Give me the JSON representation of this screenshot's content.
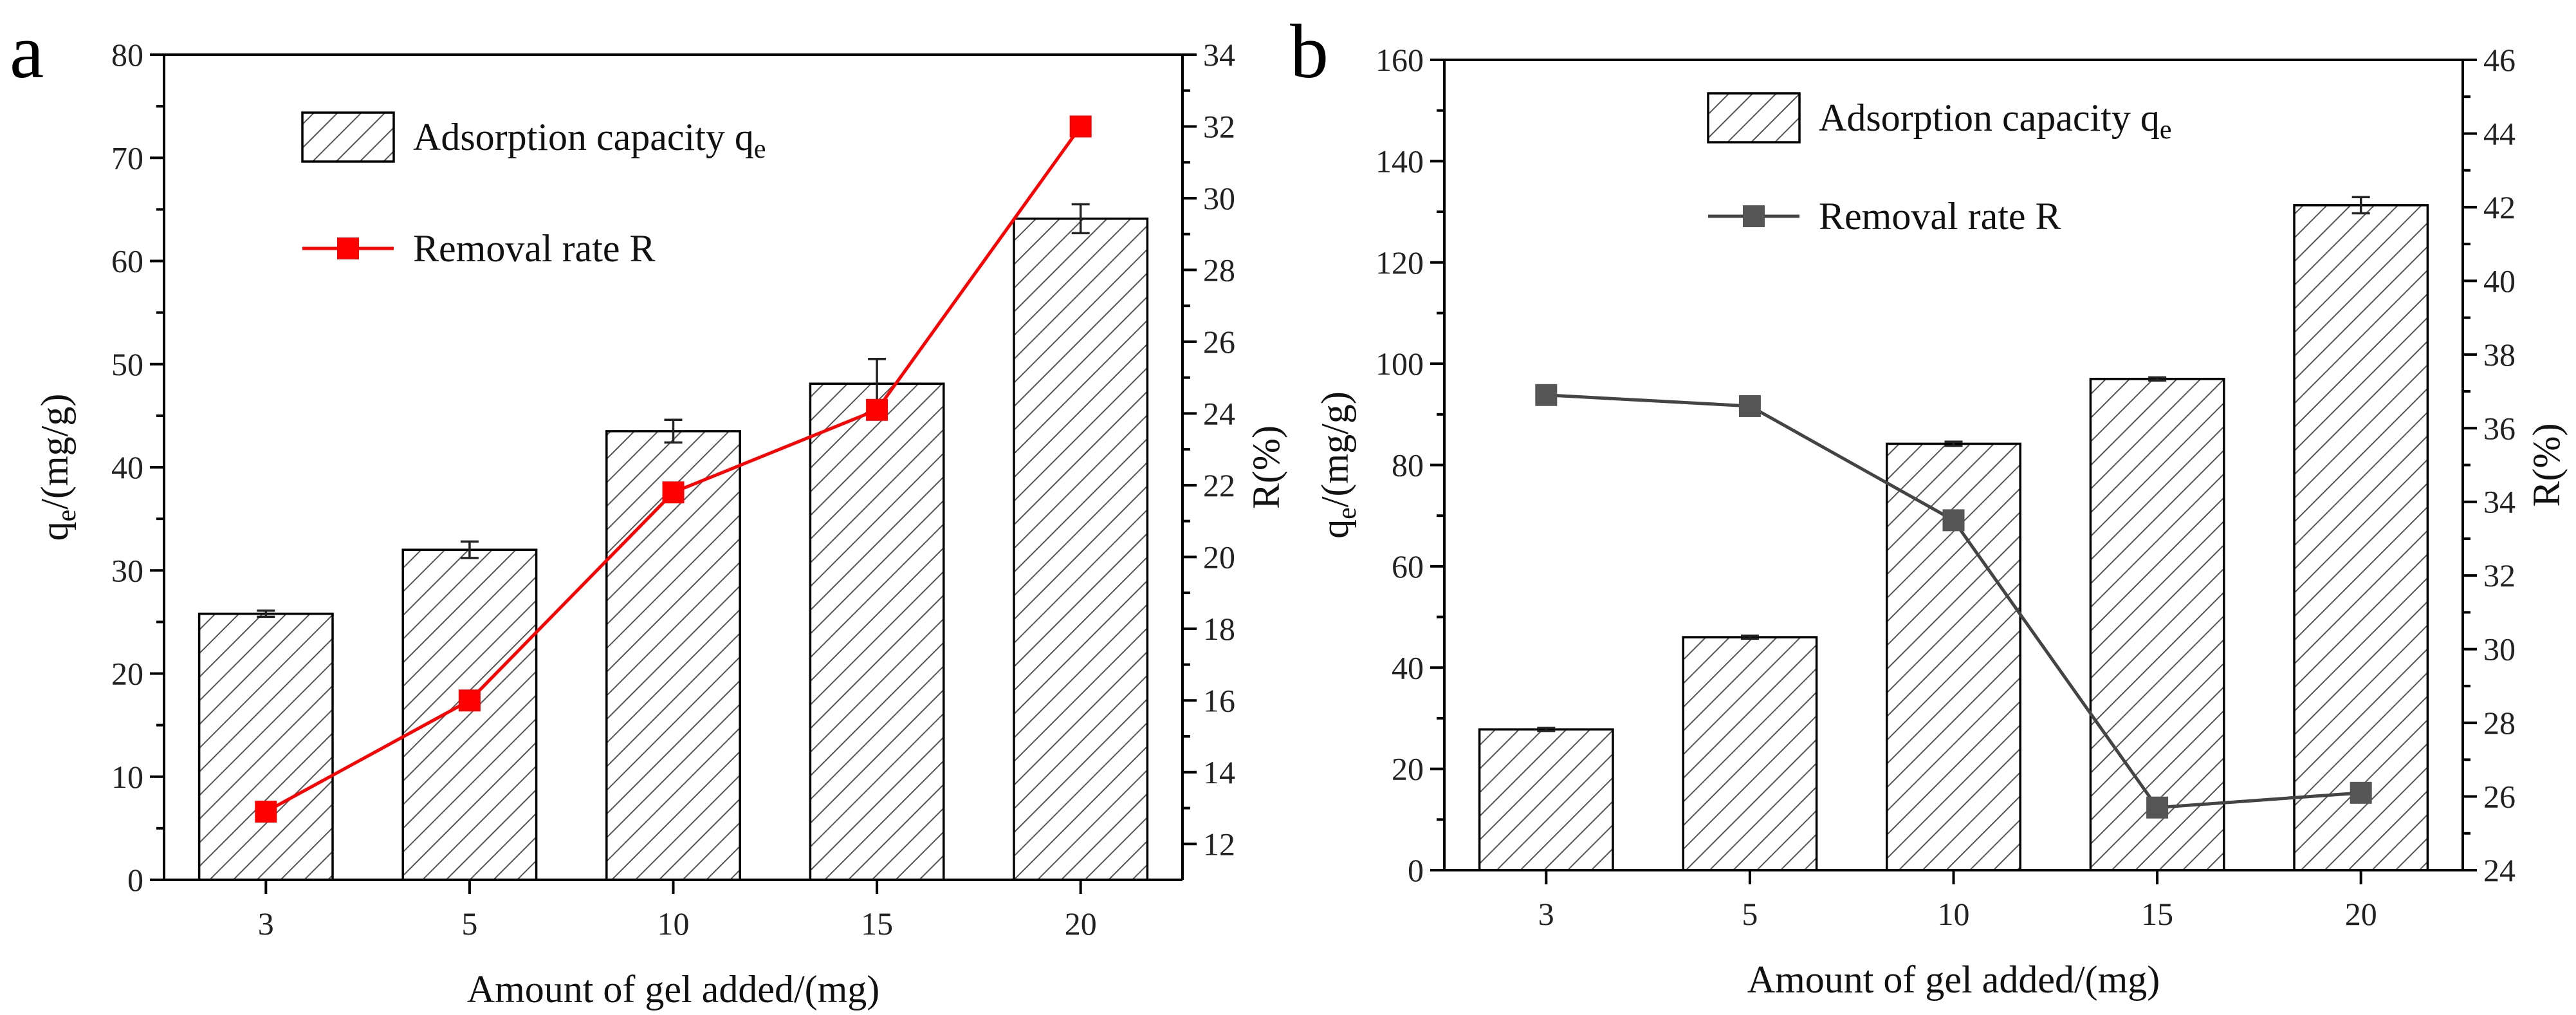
{
  "chart_data": [
    {
      "panel_label": "a",
      "type": "bar+line",
      "categories": [
        "3",
        "5",
        "10",
        "15",
        "20"
      ],
      "xlabel": "Amount of gel added/(mg)",
      "ylabel_left": {
        "main": "q",
        "sub": "e",
        "rest": "/(mg/g)"
      },
      "ylabel_right": "R(%)",
      "ylim_left": [
        0,
        80
      ],
      "yticks_left": [
        0,
        10,
        20,
        30,
        40,
        50,
        60,
        70,
        80
      ],
      "ylim_right": [
        11.0,
        34.0
      ],
      "yticks_right": [
        12,
        14,
        16,
        18,
        20,
        22,
        24,
        26,
        28,
        30,
        32,
        34
      ],
      "bar_series": {
        "name_main": "Adsorption capacity q",
        "name_sub": "e",
        "values": [
          25.8,
          32.0,
          43.5,
          48.1,
          64.1
        ],
        "errors": [
          0.3,
          0.8,
          1.1,
          2.4,
          1.4
        ]
      },
      "line_series": {
        "name": "Removal rate R",
        "values": [
          12.9,
          16.0,
          21.8,
          24.1,
          32.0
        ],
        "color": "#ff0000",
        "marker_color": "#ff0000"
      },
      "legend_position": "top-left"
    },
    {
      "panel_label": "b",
      "type": "bar+line",
      "categories": [
        "3",
        "5",
        "10",
        "15",
        "20"
      ],
      "xlabel": "Amount of gel added/(mg)",
      "ylabel_left": {
        "main": "q",
        "sub": "e",
        "rest": "/(mg/g)"
      },
      "ylabel_right": "R(%)",
      "ylim_left": [
        0,
        160
      ],
      "yticks_left": [
        0,
        20,
        40,
        60,
        80,
        100,
        120,
        140,
        160
      ],
      "ylim_right": [
        24,
        46
      ],
      "yticks_right": [
        24,
        26,
        28,
        30,
        32,
        34,
        36,
        38,
        40,
        42,
        44,
        46
      ],
      "bar_series": {
        "name_main": "Adsorption capacity q",
        "name_sub": "e",
        "values": [
          27.8,
          46.0,
          84.2,
          97.0,
          131.3
        ],
        "errors": [
          0.3,
          0.3,
          0.4,
          0.3,
          1.6
        ]
      },
      "line_series": {
        "name": "Removal rate R",
        "values": [
          36.9,
          36.6,
          33.5,
          25.7,
          26.1
        ],
        "color": "#444444",
        "marker_color": "#555555"
      },
      "legend_position": "top-left"
    }
  ]
}
